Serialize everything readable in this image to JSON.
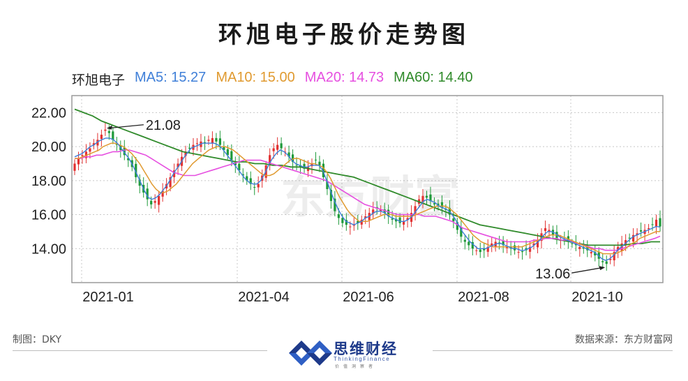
{
  "page": {
    "title": "环旭电子股价走势图",
    "credit": "制图：DKY",
    "source": "数据来源：东方财富网",
    "logo_text": "思维财经",
    "logo_sub": "ThinkingFinance",
    "logo_sub2": "价值洞察者",
    "watermark": "东方财富"
  },
  "legend": {
    "name": "环旭电子",
    "ma5": "MA5: 15.27",
    "ma10": "MA10: 15.00",
    "ma20": "MA20: 14.73",
    "ma60": "MA60: 14.40"
  },
  "colors": {
    "up": "#e23232",
    "down": "#1f9a3a",
    "ma5": "#3f7fd8",
    "ma10": "#e09a30",
    "ma20": "#e64fe0",
    "ma60": "#2f8a2a",
    "frame": "#9a9a9a",
    "grid": "#c8c8c8"
  },
  "chart_data": {
    "type": "line",
    "title": "环旭电子股价走势图",
    "xlabel": "",
    "ylabel": "",
    "x_ticks": [
      "2021-01",
      "2021-04",
      "2021-06",
      "2021-08",
      "2021-10"
    ],
    "y_ticks": [
      "22.00",
      "20.00",
      "18.00",
      "16.00",
      "14.00"
    ],
    "ylim": [
      12.0,
      23.0
    ],
    "grid": true,
    "legend_position": "top-left",
    "annotations": [
      {
        "text": "21.08",
        "value": 21.08,
        "label": "high"
      },
      {
        "text": "13.06",
        "value": 13.06,
        "label": "low"
      }
    ],
    "candles": {
      "interval": "trading-day",
      "close": [
        19.0,
        19.3,
        19.5,
        19.7,
        19.9,
        20.2,
        20.4,
        20.7,
        21.0,
        20.8,
        20.4,
        20.1,
        19.8,
        19.5,
        19.2,
        18.8,
        18.2,
        17.7,
        17.3,
        16.9,
        16.6,
        16.8,
        17.1,
        17.4,
        17.8,
        18.2,
        18.6,
        19.0,
        19.4,
        19.7,
        19.9,
        20.1,
        20.2,
        20.3,
        20.2,
        20.4,
        20.5,
        20.3,
        20.1,
        19.8,
        19.5,
        19.2,
        18.9,
        18.6,
        18.3,
        18.0,
        17.8,
        17.6,
        17.8,
        18.3,
        18.9,
        19.5,
        19.9,
        20.1,
        19.9,
        19.7,
        19.4,
        19.1,
        18.9,
        18.8,
        18.7,
        18.8,
        19.0,
        19.2,
        18.9,
        18.2,
        17.5,
        16.8,
        16.2,
        15.8,
        15.5,
        15.4,
        15.3,
        15.4,
        15.5,
        15.7,
        15.9,
        16.1,
        16.3,
        16.4,
        16.3,
        16.1,
        15.9,
        15.7,
        15.6,
        15.5,
        15.6,
        15.8,
        16.1,
        16.5,
        16.9,
        17.1,
        17.0,
        16.8,
        16.6,
        16.5,
        16.4,
        16.3,
        16.0,
        15.6,
        15.1,
        14.7,
        14.4,
        14.2,
        14.0,
        13.9,
        13.8,
        13.9,
        14.1,
        14.3,
        14.4,
        14.3,
        14.2,
        14.1,
        14.0,
        13.9,
        13.8,
        13.8,
        13.9,
        14.1,
        14.3,
        14.5,
        14.9,
        15.2,
        15.1,
        14.8,
        14.6,
        14.5,
        14.5,
        14.4,
        14.3,
        14.2,
        14.1,
        14.0,
        13.9,
        13.8,
        13.6,
        13.4,
        13.2,
        13.1,
        13.4,
        13.8,
        14.1,
        14.3,
        14.5,
        14.6,
        14.8,
        14.9,
        15.0,
        15.1,
        15.2,
        15.4,
        15.7,
        15.3
      ],
      "ma5": [
        19.4,
        19.5,
        19.6,
        19.8,
        20.0,
        20.1,
        20.3,
        20.4,
        20.5,
        20.5,
        20.4,
        20.2,
        19.9,
        19.6,
        19.3,
        18.9,
        18.4,
        17.9,
        17.4,
        17.0,
        16.9,
        17.0,
        17.2,
        17.5,
        17.8,
        18.2,
        18.6,
        18.9,
        19.3,
        19.6,
        19.9,
        20.0,
        20.1,
        20.2,
        20.2,
        20.2,
        20.2,
        20.1,
        19.9,
        19.6,
        19.3,
        19.0,
        18.7,
        18.4,
        18.1,
        17.9,
        17.8,
        17.8,
        18.0,
        18.4,
        18.9,
        19.3,
        19.6,
        19.8,
        19.7,
        19.5,
        19.2,
        19.0,
        18.9,
        18.8,
        18.8,
        18.9,
        18.9,
        18.9,
        18.6,
        18.0,
        17.4,
        16.8,
        16.3,
        15.9,
        15.6,
        15.5,
        15.4,
        15.5,
        15.6,
        15.8,
        15.9,
        16.1,
        16.2,
        16.2,
        16.1,
        15.9,
        15.8,
        15.7,
        15.6,
        15.6,
        15.7,
        15.9,
        16.2,
        16.5,
        16.8,
        16.9,
        16.8,
        16.7,
        16.5,
        16.4,
        16.3,
        16.1,
        15.8,
        15.4,
        15.0,
        14.7,
        14.4,
        14.2,
        14.0,
        14.0,
        14.0,
        14.1,
        14.2,
        14.3,
        14.3,
        14.2,
        14.1,
        14.0,
        14.0,
        13.9,
        13.9,
        14.0,
        14.1,
        14.3,
        14.5,
        14.8,
        15.0,
        15.0,
        14.9,
        14.7,
        14.6,
        14.5,
        14.4,
        14.3,
        14.2,
        14.1,
        14.0,
        13.9,
        13.8,
        13.6,
        13.4,
        13.3,
        13.4,
        13.6,
        13.9,
        14.1,
        14.3,
        14.5,
        14.7,
        14.8,
        14.9,
        15.0,
        15.1,
        15.2,
        15.3,
        15.27
      ],
      "ma10": [
        19.3,
        19.3,
        19.4,
        19.5,
        19.6,
        19.7,
        19.8,
        20.0,
        20.1,
        20.2,
        20.2,
        20.1,
        20.0,
        19.8,
        19.6,
        19.3,
        19.0,
        18.6,
        18.2,
        17.8,
        17.5,
        17.3,
        17.3,
        17.4,
        17.6,
        17.8,
        18.1,
        18.4,
        18.7,
        19.0,
        19.2,
        19.4,
        19.6,
        19.8,
        19.9,
        20.0,
        20.0,
        20.0,
        19.9,
        19.8,
        19.6,
        19.4,
        19.2,
        19.0,
        18.8,
        18.6,
        18.4,
        18.3,
        18.3,
        18.4,
        18.6,
        18.8,
        19.0,
        19.2,
        19.3,
        19.3,
        19.2,
        19.1,
        19.0,
        19.0,
        18.9,
        18.8,
        18.5,
        18.1,
        17.6,
        17.1,
        16.7,
        16.3,
        16.0,
        15.8,
        15.6,
        15.6,
        15.6,
        15.7,
        15.8,
        15.9,
        16.0,
        16.0,
        16.0,
        15.9,
        15.9,
        15.9,
        15.9,
        15.9,
        16.0,
        16.1,
        16.2,
        16.3,
        16.4,
        16.5,
        16.5,
        16.5,
        16.4,
        16.2,
        16.0,
        15.7,
        15.4,
        15.1,
        14.8,
        14.6,
        14.4,
        14.3,
        14.2,
        14.1,
        14.1,
        14.1,
        14.1,
        14.1,
        14.1,
        14.1,
        14.1,
        14.2,
        14.3,
        14.4,
        14.5,
        14.6,
        14.7,
        14.8,
        14.8,
        14.8,
        14.7,
        14.6,
        14.5,
        14.4,
        14.3,
        14.2,
        14.1,
        14.0,
        13.9,
        13.8,
        13.7,
        13.7,
        13.7,
        13.7,
        13.8,
        13.9,
        14.1,
        14.3,
        14.4,
        14.6,
        14.7,
        14.8,
        14.9,
        15.0,
        15.0
      ],
      "ma20": [
        19.3,
        19.3,
        19.4,
        19.4,
        19.5,
        19.5,
        19.6,
        19.7,
        19.7,
        19.8,
        19.8,
        19.7,
        19.6,
        19.5,
        19.3,
        19.1,
        18.9,
        18.7,
        18.5,
        18.4,
        18.3,
        18.3,
        18.3,
        18.4,
        18.5,
        18.6,
        18.7,
        18.8,
        18.9,
        19.0,
        19.1,
        19.2,
        19.2,
        19.2,
        19.2,
        19.1,
        19.0,
        18.9,
        18.8,
        18.7,
        18.6,
        18.5,
        18.4,
        18.3,
        18.2,
        18.1,
        18.0,
        17.8,
        17.6,
        17.4,
        17.2,
        17.0,
        16.8,
        16.6,
        16.5,
        16.4,
        16.3,
        16.2,
        16.1,
        16.0,
        16.0,
        16.0,
        16.0,
        16.0,
        15.9,
        15.9,
        15.9,
        15.8,
        15.7,
        15.6,
        15.4,
        15.2,
        15.1,
        15.0,
        14.9,
        14.8,
        14.7,
        14.6,
        14.5,
        14.4,
        14.4,
        14.4,
        14.4,
        14.4,
        14.5,
        14.5,
        14.6,
        14.6,
        14.6,
        14.5,
        14.5,
        14.4,
        14.3,
        14.2,
        14.1,
        14.0,
        14.0,
        13.9,
        13.9,
        13.9,
        14.0,
        14.1,
        14.2,
        14.3,
        14.4,
        14.5,
        14.6,
        14.73
      ]
    },
    "series": [
      {
        "name": "MA5",
        "last_value": 15.27
      },
      {
        "name": "MA10",
        "last_value": 15.0
      },
      {
        "name": "MA20",
        "last_value": 14.73
      },
      {
        "name": "MA60",
        "last_value": 14.4,
        "values": [
          22.2,
          22.0,
          21.8,
          21.5,
          21.3,
          21.1,
          20.9,
          20.7,
          20.5,
          20.3,
          20.1,
          19.9,
          19.7,
          19.6,
          19.5,
          19.4,
          19.3,
          19.2,
          19.1,
          19.1,
          19.0,
          19.0,
          18.9,
          18.9,
          18.8,
          18.8,
          18.7,
          18.6,
          18.5,
          18.4,
          18.3,
          18.2,
          18.0,
          17.8,
          17.6,
          17.4,
          17.2,
          17.0,
          16.8,
          16.6,
          16.4,
          16.2,
          16.0,
          15.8,
          15.6,
          15.4,
          15.3,
          15.2,
          15.1,
          15.0,
          14.9,
          14.8,
          14.7,
          14.6,
          14.5,
          14.4,
          14.3,
          14.2,
          14.2,
          14.2,
          14.2,
          14.2,
          14.3,
          14.3,
          14.4,
          14.4
        ]
      }
    ]
  }
}
